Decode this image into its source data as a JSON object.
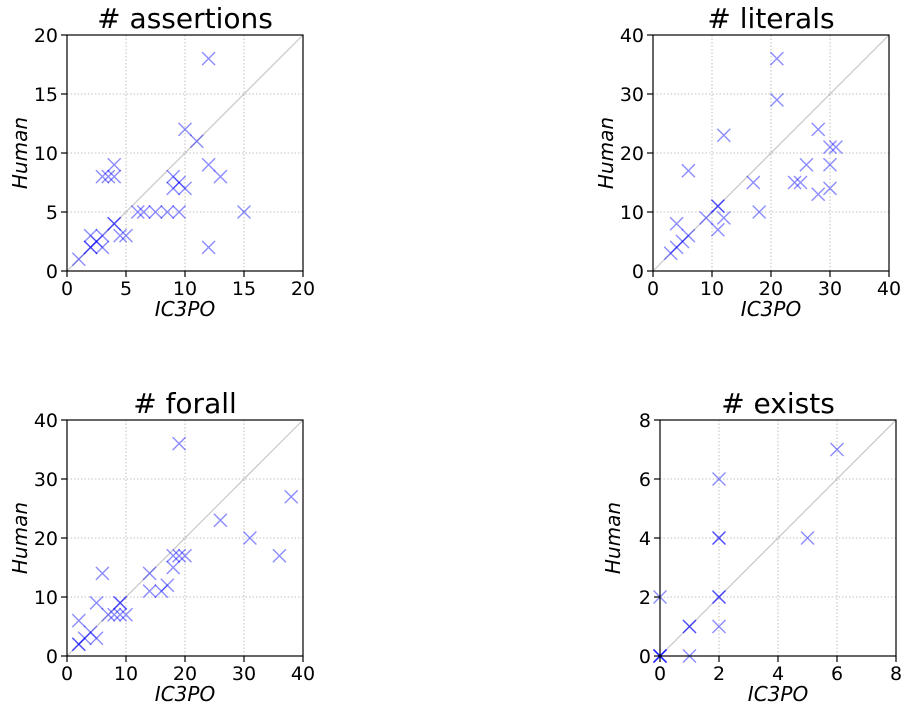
{
  "chart_data": [
    {
      "type": "scatter",
      "title": "# assertions",
      "xlabel": "IC3PO",
      "ylabel": "Human",
      "xlim": [
        0,
        20
      ],
      "ylim": [
        0,
        20
      ],
      "xticks": [
        "0",
        "5",
        "10",
        "15",
        "20"
      ],
      "yticks": [
        "0",
        "5",
        "10",
        "15",
        "20"
      ],
      "grid": true,
      "diagonal": true,
      "marker": "x",
      "color": "#0000ff",
      "points": [
        {
          "x": 1,
          "y": 1
        },
        {
          "x": 2,
          "y": 2
        },
        {
          "x": 2,
          "y": 2
        },
        {
          "x": 2,
          "y": 3
        },
        {
          "x": 2.5,
          "y": 2.5
        },
        {
          "x": 3,
          "y": 2
        },
        {
          "x": 3,
          "y": 3
        },
        {
          "x": 3,
          "y": 8
        },
        {
          "x": 3.5,
          "y": 8
        },
        {
          "x": 4,
          "y": 4
        },
        {
          "x": 4,
          "y": 4
        },
        {
          "x": 4,
          "y": 8
        },
        {
          "x": 4,
          "y": 9
        },
        {
          "x": 4.5,
          "y": 3
        },
        {
          "x": 5,
          "y": 3
        },
        {
          "x": 6,
          "y": 5
        },
        {
          "x": 6.5,
          "y": 5
        },
        {
          "x": 7.5,
          "y": 5
        },
        {
          "x": 8.5,
          "y": 5
        },
        {
          "x": 9,
          "y": 8
        },
        {
          "x": 9,
          "y": 7
        },
        {
          "x": 9.5,
          "y": 5
        },
        {
          "x": 9.5,
          "y": 7.5
        },
        {
          "x": 10,
          "y": 12
        },
        {
          "x": 10,
          "y": 7
        },
        {
          "x": 11,
          "y": 11
        },
        {
          "x": 12,
          "y": 18
        },
        {
          "x": 12,
          "y": 9
        },
        {
          "x": 12,
          "y": 2
        },
        {
          "x": 13,
          "y": 8
        },
        {
          "x": 15,
          "y": 5
        }
      ]
    },
    {
      "type": "scatter",
      "title": "# literals",
      "xlabel": "IC3PO",
      "ylabel": "Human",
      "xlim": [
        0,
        40
      ],
      "ylim": [
        0,
        40
      ],
      "xticks": [
        "0",
        "10",
        "20",
        "30",
        "40"
      ],
      "yticks": [
        "0",
        "10",
        "20",
        "30",
        "40"
      ],
      "grid": true,
      "diagonal": true,
      "marker": "x",
      "color": "#0000ff",
      "points": [
        {
          "x": 3,
          "y": 3
        },
        {
          "x": 4,
          "y": 4
        },
        {
          "x": 4,
          "y": 8
        },
        {
          "x": 5,
          "y": 5
        },
        {
          "x": 6,
          "y": 6
        },
        {
          "x": 6,
          "y": 17
        },
        {
          "x": 9,
          "y": 9
        },
        {
          "x": 11,
          "y": 11
        },
        {
          "x": 11,
          "y": 11
        },
        {
          "x": 11,
          "y": 7
        },
        {
          "x": 12,
          "y": 23
        },
        {
          "x": 12,
          "y": 9
        },
        {
          "x": 17,
          "y": 15
        },
        {
          "x": 18,
          "y": 10
        },
        {
          "x": 21,
          "y": 36
        },
        {
          "x": 21,
          "y": 29
        },
        {
          "x": 24,
          "y": 15
        },
        {
          "x": 25,
          "y": 15
        },
        {
          "x": 26,
          "y": 18
        },
        {
          "x": 28,
          "y": 24
        },
        {
          "x": 28,
          "y": 13
        },
        {
          "x": 30,
          "y": 21
        },
        {
          "x": 30,
          "y": 18
        },
        {
          "x": 30,
          "y": 14
        },
        {
          "x": 31,
          "y": 21
        }
      ]
    },
    {
      "type": "scatter",
      "title": "# forall",
      "xlabel": "IC3PO",
      "ylabel": "Human",
      "xlim": [
        0,
        40
      ],
      "ylim": [
        0,
        40
      ],
      "xticks": [
        "0",
        "10",
        "20",
        "30",
        "40"
      ],
      "yticks": [
        "0",
        "10",
        "20",
        "30",
        "40"
      ],
      "grid": true,
      "diagonal": true,
      "marker": "x",
      "color": "#0000ff",
      "points": [
        {
          "x": 2,
          "y": 2
        },
        {
          "x": 2,
          "y": 2
        },
        {
          "x": 2,
          "y": 6
        },
        {
          "x": 3,
          "y": 3
        },
        {
          "x": 4,
          "y": 4
        },
        {
          "x": 5,
          "y": 3
        },
        {
          "x": 5,
          "y": 9
        },
        {
          "x": 6,
          "y": 14
        },
        {
          "x": 7,
          "y": 7
        },
        {
          "x": 8,
          "y": 7
        },
        {
          "x": 9,
          "y": 9
        },
        {
          "x": 9,
          "y": 9
        },
        {
          "x": 9,
          "y": 7
        },
        {
          "x": 10,
          "y": 7
        },
        {
          "x": 14,
          "y": 14
        },
        {
          "x": 14,
          "y": 11
        },
        {
          "x": 16,
          "y": 11
        },
        {
          "x": 17,
          "y": 12
        },
        {
          "x": 18,
          "y": 15
        },
        {
          "x": 18,
          "y": 17
        },
        {
          "x": 19,
          "y": 17
        },
        {
          "x": 19,
          "y": 36
        },
        {
          "x": 20,
          "y": 17
        },
        {
          "x": 26,
          "y": 23
        },
        {
          "x": 31,
          "y": 20
        },
        {
          "x": 36,
          "y": 17
        },
        {
          "x": 38,
          "y": 27
        }
      ]
    },
    {
      "type": "scatter",
      "title": "# exists",
      "xlabel": "IC3PO",
      "ylabel": "Human",
      "xlim": [
        0,
        8
      ],
      "ylim": [
        0,
        8
      ],
      "xticks": [
        "0",
        "2",
        "4",
        "6",
        "8"
      ],
      "yticks": [
        "0",
        "2",
        "4",
        "6",
        "8"
      ],
      "grid": true,
      "diagonal": true,
      "marker": "x",
      "color": "#0000ff",
      "points": [
        {
          "x": 0,
          "y": 0
        },
        {
          "x": 0,
          "y": 0
        },
        {
          "x": 0,
          "y": 0
        },
        {
          "x": 0,
          "y": 0
        },
        {
          "x": 0,
          "y": 2
        },
        {
          "x": 1,
          "y": 1
        },
        {
          "x": 1,
          "y": 1
        },
        {
          "x": 1,
          "y": 0
        },
        {
          "x": 2,
          "y": 6
        },
        {
          "x": 2,
          "y": 4
        },
        {
          "x": 2,
          "y": 4
        },
        {
          "x": 2,
          "y": 2
        },
        {
          "x": 2,
          "y": 2
        },
        {
          "x": 2,
          "y": 1
        },
        {
          "x": 5,
          "y": 4
        },
        {
          "x": 6,
          "y": 7
        }
      ]
    }
  ]
}
